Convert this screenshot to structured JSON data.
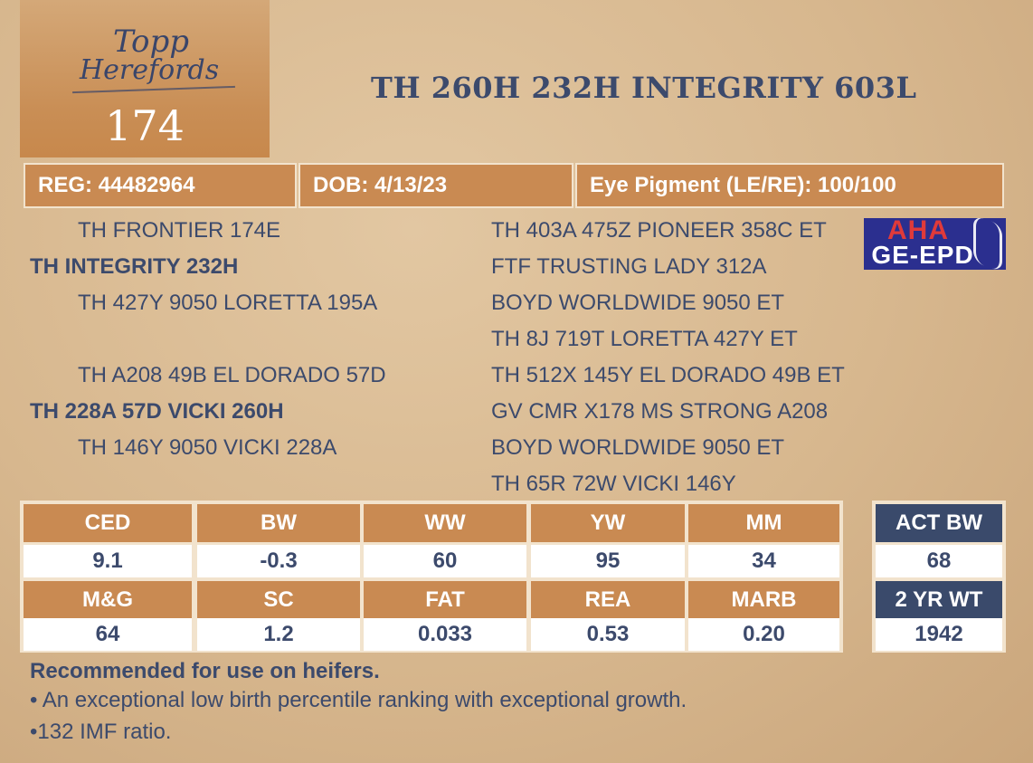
{
  "logo": {
    "text_line1": "Topp",
    "text_line2": "Herefords"
  },
  "lot_number": "174",
  "animal_name": "TH 260H 232H INTEGRITY 603L",
  "info_bar": {
    "reg": "REG: 44482964",
    "dob": "DOB: 4/13/23",
    "eye_pigment": "Eye Pigment (LE/RE): 100/100"
  },
  "pedigree": {
    "sire_sire": "TH FRONTIER 174E",
    "sire": "TH INTEGRITY 232H",
    "sire_dam": "TH 427Y 9050 LORETTA 195A",
    "dam_sire": "TH A208 49B EL DORADO 57D",
    "dam": "TH 228A 57D VICKI 260H",
    "dam_dam": "TH 146Y 9050 VICKI 228A",
    "gen3": [
      "TH 403A 475Z PIONEER 358C ET",
      "FTF TRUSTING LADY 312A",
      "BOYD WORLDWIDE 9050 ET",
      "TH 8J 719T LORETTA 427Y ET",
      "TH 512X 145Y EL DORADO 49B ET",
      "GV CMR X178 MS STRONG A208",
      "BOYD WORLDWIDE 9050 ET",
      "TH 65R 72W VICKI 146Y"
    ]
  },
  "aha_logo": {
    "line1": "AHA",
    "line2": "GE-EPD"
  },
  "epd": {
    "row1_headers": [
      "CED",
      "BW",
      "WW",
      "YW",
      "MM"
    ],
    "row1_values": [
      "9.1",
      "-0.3",
      "60",
      "95",
      "34"
    ],
    "row2_headers": [
      "M&G",
      "SC",
      "FAT",
      "REA",
      "MARB"
    ],
    "row2_values": [
      "64",
      "1.2",
      "0.033",
      "0.53",
      "0.20"
    ]
  },
  "weights": {
    "act_bw_label": "ACT BW",
    "act_bw_value": "68",
    "yr2_wt_label": "2 YR WT",
    "yr2_wt_value": "1942"
  },
  "notes": {
    "headline": "Recommended for use on heifers.",
    "bullet1": "• An exceptional low birth percentile ranking with exceptional growth.",
    "bullet2": "•132 IMF ratio."
  },
  "colors": {
    "accent_orange": "#c98a52",
    "navy": "#3c4a6c",
    "side_header_navy": "#3a4a6b"
  }
}
